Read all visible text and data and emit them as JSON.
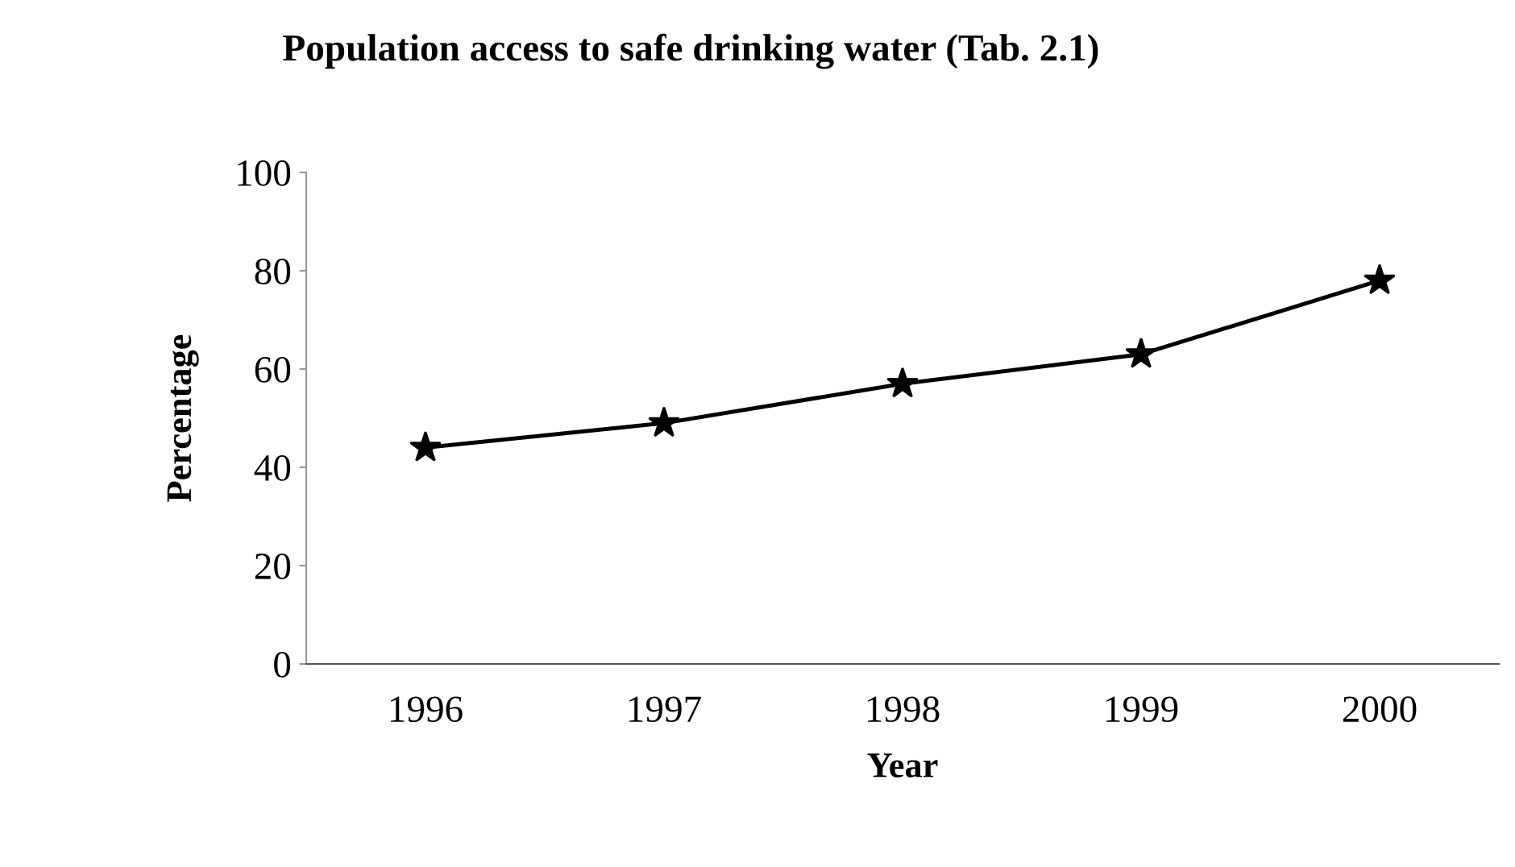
{
  "chart_data": {
    "type": "line",
    "title": "Population access to safe drinking water (Tab. 2.1)",
    "xlabel": "Year",
    "ylabel": "Percentage",
    "categories": [
      "1996",
      "1997",
      "1998",
      "1999",
      "2000"
    ],
    "series": [
      {
        "color": "#000000",
        "values": [
          44,
          49,
          57,
          63,
          78
        ]
      }
    ],
    "ylim": [
      0,
      100
    ],
    "yticks": [
      0,
      20,
      40,
      60,
      80,
      100
    ],
    "grid": false,
    "legend": false,
    "marker": "star",
    "line_style": "solid"
  }
}
